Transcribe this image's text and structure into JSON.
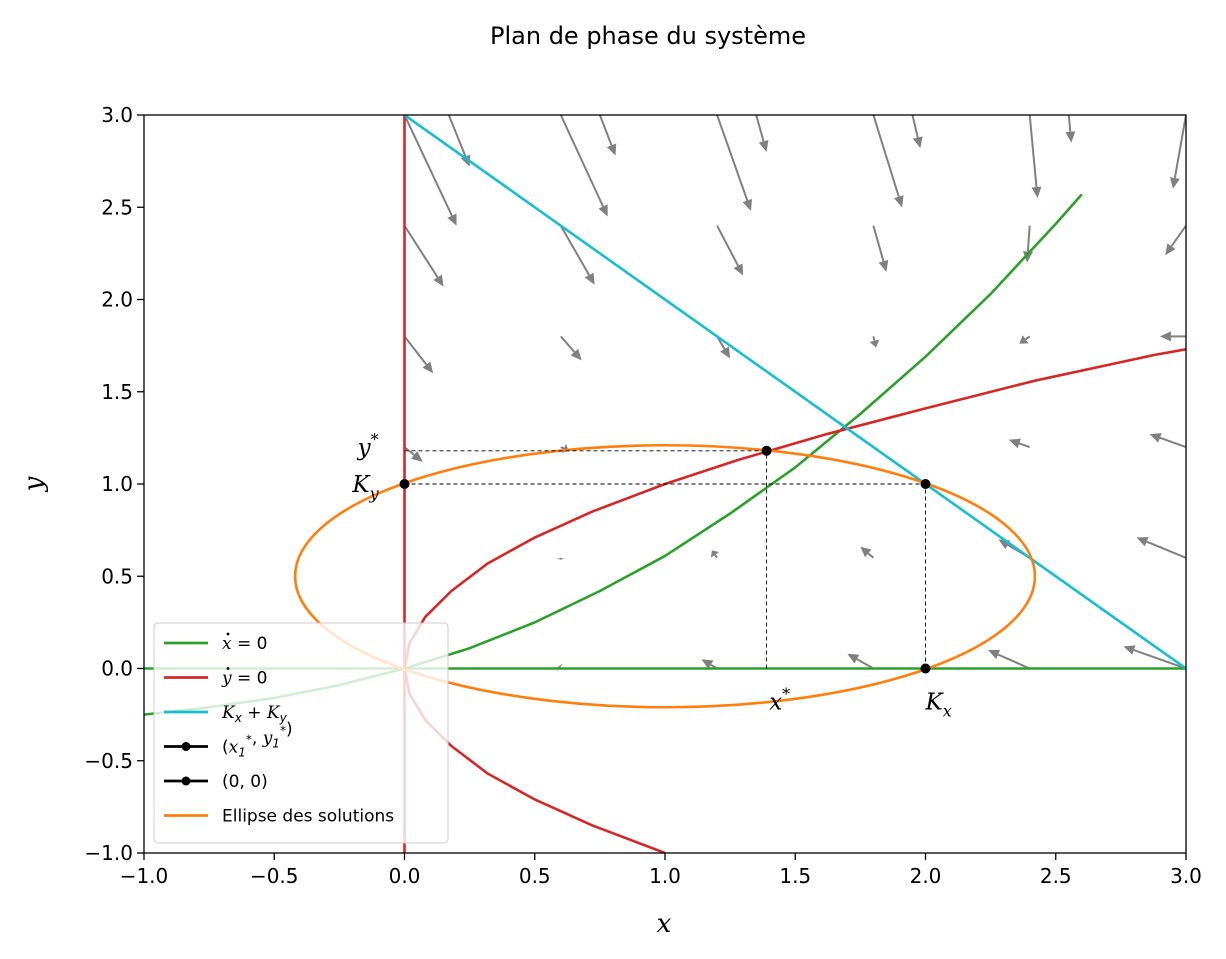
{
  "chart_data": {
    "type": "line",
    "title": "Plan de phase du système",
    "xlabel": "x",
    "ylabel": "y",
    "xlim": [
      -1.0,
      3.0
    ],
    "ylim": [
      -1.0,
      3.0
    ],
    "x_ticks": [
      -1.0,
      -0.5,
      0.0,
      0.5,
      1.0,
      1.5,
      2.0,
      2.5,
      3.0
    ],
    "y_ticks": [
      -1.0,
      -0.5,
      0.0,
      0.5,
      1.0,
      1.5,
      2.0,
      2.5,
      3.0
    ],
    "x_tick_labels": [
      "−1.0",
      "−0.5",
      "0.0",
      "0.5",
      "1.0",
      "1.5",
      "2.0",
      "2.5",
      "3.0"
    ],
    "y_tick_labels": [
      "−1.0",
      "−0.5",
      "0.0",
      "0.5",
      "1.0",
      "1.5",
      "2.0",
      "2.5",
      "3.0"
    ],
    "grid": false,
    "legend_position": "lower-left",
    "colors": {
      "x_nullcline": "#2ca02c",
      "y_nullcline": "#d62728",
      "k_line": "#17becf",
      "ellipse": "#ff7f0e",
      "equilibrium": "#000000",
      "quiver": "#808080"
    },
    "series": [
      {
        "name": "ẋ = 0",
        "legend_key": "xdot",
        "style": "line",
        "color": "#2ca02c",
        "curves": [
          {
            "x": [
              -1.0,
              3.0
            ],
            "y": [
              0.0,
              0.0
            ]
          },
          {
            "x": [
              -1.0,
              -0.75,
              -0.5,
              -0.25,
              0.0,
              0.25,
              0.5,
              0.75,
              1.0,
              1.25,
              1.5,
              1.75,
              2.0,
              2.25,
              2.5,
              2.6
            ],
            "y": [
              -0.25,
              -0.21,
              -0.16,
              -0.09,
              0.0,
              0.11,
              0.25,
              0.42,
              0.61,
              0.84,
              1.09,
              1.38,
              1.69,
              2.03,
              2.41,
              2.57
            ]
          }
        ]
      },
      {
        "name": "ẏ = 0",
        "legend_key": "ydot",
        "style": "line",
        "color": "#d62728",
        "curves": [
          {
            "x": [
              0.0,
              0.0
            ],
            "y": [
              -1.0,
              3.0
            ]
          },
          {
            "x": [
              1.0,
              0.72,
              0.5,
              0.32,
              0.18,
              0.08,
              0.02,
              0.0,
              0.02,
              0.08,
              0.18,
              0.32,
              0.5,
              0.72,
              1.0,
              1.28,
              1.62,
              2.0,
              2.42,
              2.88,
              3.0
            ],
            "y": [
              -1.0,
              -0.85,
              -0.71,
              -0.57,
              -0.42,
              -0.28,
              -0.14,
              0.0,
              0.14,
              0.28,
              0.42,
              0.57,
              0.71,
              0.85,
              1.0,
              1.13,
              1.27,
              1.41,
              1.56,
              1.7,
              1.73
            ]
          }
        ]
      },
      {
        "name": "Kₓ + Kᵧ",
        "legend_key": "kline",
        "style": "line",
        "color": "#17becf",
        "curves": [
          {
            "x": [
              0.0,
              3.0
            ],
            "y": [
              3.0,
              0.0
            ]
          }
        ]
      },
      {
        "name": "(x₁*, y₁*)",
        "legend_key": "eq1",
        "style": "marker-line",
        "color": "#000000",
        "points": [
          {
            "x": 1.39,
            "y": 1.18
          }
        ]
      },
      {
        "name": "(0, 0)",
        "legend_key": "origin",
        "style": "marker-line",
        "color": "#000000",
        "points": [
          {
            "x": 0.0,
            "y": 0.0
          }
        ]
      },
      {
        "name": "Ellipse des solutions",
        "legend_key": "ellipse",
        "style": "line",
        "color": "#ff7f0e",
        "ellipse": {
          "cx": 1.0,
          "cy": 0.5,
          "rx": 1.42,
          "ry": 0.71
        }
      }
    ],
    "markers": [
      {
        "x": 0.0,
        "y": 1.0
      },
      {
        "x": 1.39,
        "y": 1.18
      },
      {
        "x": 2.0,
        "y": 1.0
      },
      {
        "x": 2.0,
        "y": 0.0
      }
    ],
    "guide_lines": [
      {
        "x": [
          0.0,
          1.39
        ],
        "y": [
          1.18,
          1.18
        ]
      },
      {
        "x": [
          0.0,
          2.0
        ],
        "y": [
          1.0,
          1.0
        ]
      },
      {
        "x": [
          1.39,
          1.39
        ],
        "y": [
          0.0,
          1.18
        ]
      },
      {
        "x": [
          2.0,
          2.0
        ],
        "y": [
          0.0,
          1.0
        ]
      }
    ],
    "annotations": [
      {
        "text": "y*",
        "x": -0.18,
        "y": 1.2
      },
      {
        "text": "Kᵧ",
        "x": -0.2,
        "y": 1.0
      },
      {
        "text": "x*",
        "x": 1.4,
        "y": -0.18
      },
      {
        "text": "Kₓ",
        "x": 2.0,
        "y": -0.18
      }
    ],
    "quiver": [
      {
        "x": 0.0,
        "y": 3.0,
        "dx": 0.2,
        "dy": -0.6
      },
      {
        "x": 0.0,
        "y": 2.4,
        "dx": 0.15,
        "dy": -0.33
      },
      {
        "x": 0.0,
        "y": 1.8,
        "dx": 0.11,
        "dy": -0.2
      },
      {
        "x": 0.0,
        "y": 1.2,
        "dx": 0.07,
        "dy": -0.08
      },
      {
        "x": 0.17,
        "y": 3.0,
        "dx": 0.08,
        "dy": -0.28
      },
      {
        "x": 0.6,
        "y": 3.0,
        "dx": 0.18,
        "dy": -0.55
      },
      {
        "x": 0.6,
        "y": 2.4,
        "dx": 0.13,
        "dy": -0.32
      },
      {
        "x": 0.6,
        "y": 1.8,
        "dx": 0.08,
        "dy": -0.13
      },
      {
        "x": 0.6,
        "y": 1.2,
        "dx": 0.03,
        "dy": -0.02
      },
      {
        "x": 0.6,
        "y": 0.6,
        "dx": 0.0,
        "dy": -0.01
      },
      {
        "x": 0.6,
        "y": 0.0,
        "dx": -0.01,
        "dy": 0.01
      },
      {
        "x": 0.75,
        "y": 3.0,
        "dx": 0.06,
        "dy": -0.22
      },
      {
        "x": 1.2,
        "y": 3.0,
        "dx": 0.13,
        "dy": -0.52
      },
      {
        "x": 1.2,
        "y": 2.4,
        "dx": 0.1,
        "dy": -0.27
      },
      {
        "x": 1.2,
        "y": 1.8,
        "dx": 0.05,
        "dy": -0.12
      },
      {
        "x": 1.2,
        "y": 0.6,
        "dx": -0.02,
        "dy": 0.04
      },
      {
        "x": 1.2,
        "y": 0.0,
        "dx": -0.06,
        "dy": 0.05
      },
      {
        "x": 1.35,
        "y": 3.0,
        "dx": 0.04,
        "dy": -0.2
      },
      {
        "x": 1.8,
        "y": 3.0,
        "dx": 0.11,
        "dy": -0.5
      },
      {
        "x": 1.8,
        "y": 2.4,
        "dx": 0.05,
        "dy": -0.25
      },
      {
        "x": 1.8,
        "y": 1.8,
        "dx": 0.01,
        "dy": -0.06
      },
      {
        "x": 1.8,
        "y": 0.6,
        "dx": -0.05,
        "dy": 0.06
      },
      {
        "x": 1.8,
        "y": 0.0,
        "dx": -0.1,
        "dy": 0.08
      },
      {
        "x": 1.95,
        "y": 3.0,
        "dx": 0.03,
        "dy": -0.18
      },
      {
        "x": 2.4,
        "y": 3.0,
        "dx": 0.03,
        "dy": -0.45
      },
      {
        "x": 2.4,
        "y": 2.4,
        "dx": -0.01,
        "dy": -0.2
      },
      {
        "x": 2.4,
        "y": 1.8,
        "dx": -0.04,
        "dy": -0.04
      },
      {
        "x": 2.4,
        "y": 1.2,
        "dx": -0.08,
        "dy": 0.04
      },
      {
        "x": 2.4,
        "y": 0.6,
        "dx": -0.12,
        "dy": 0.1
      },
      {
        "x": 2.4,
        "y": 0.0,
        "dx": -0.16,
        "dy": 0.1
      },
      {
        "x": 2.55,
        "y": 3.0,
        "dx": 0.01,
        "dy": -0.15
      },
      {
        "x": 3.0,
        "y": 3.0,
        "dx": -0.05,
        "dy": -0.4
      },
      {
        "x": 3.0,
        "y": 2.4,
        "dx": -0.08,
        "dy": -0.16
      },
      {
        "x": 3.0,
        "y": 1.8,
        "dx": -0.1,
        "dy": 0.0
      },
      {
        "x": 3.0,
        "y": 1.2,
        "dx": -0.14,
        "dy": 0.07
      },
      {
        "x": 3.0,
        "y": 0.6,
        "dx": -0.19,
        "dy": 0.11
      },
      {
        "x": 3.0,
        "y": 0.0,
        "dx": -0.24,
        "dy": 0.12
      }
    ]
  }
}
